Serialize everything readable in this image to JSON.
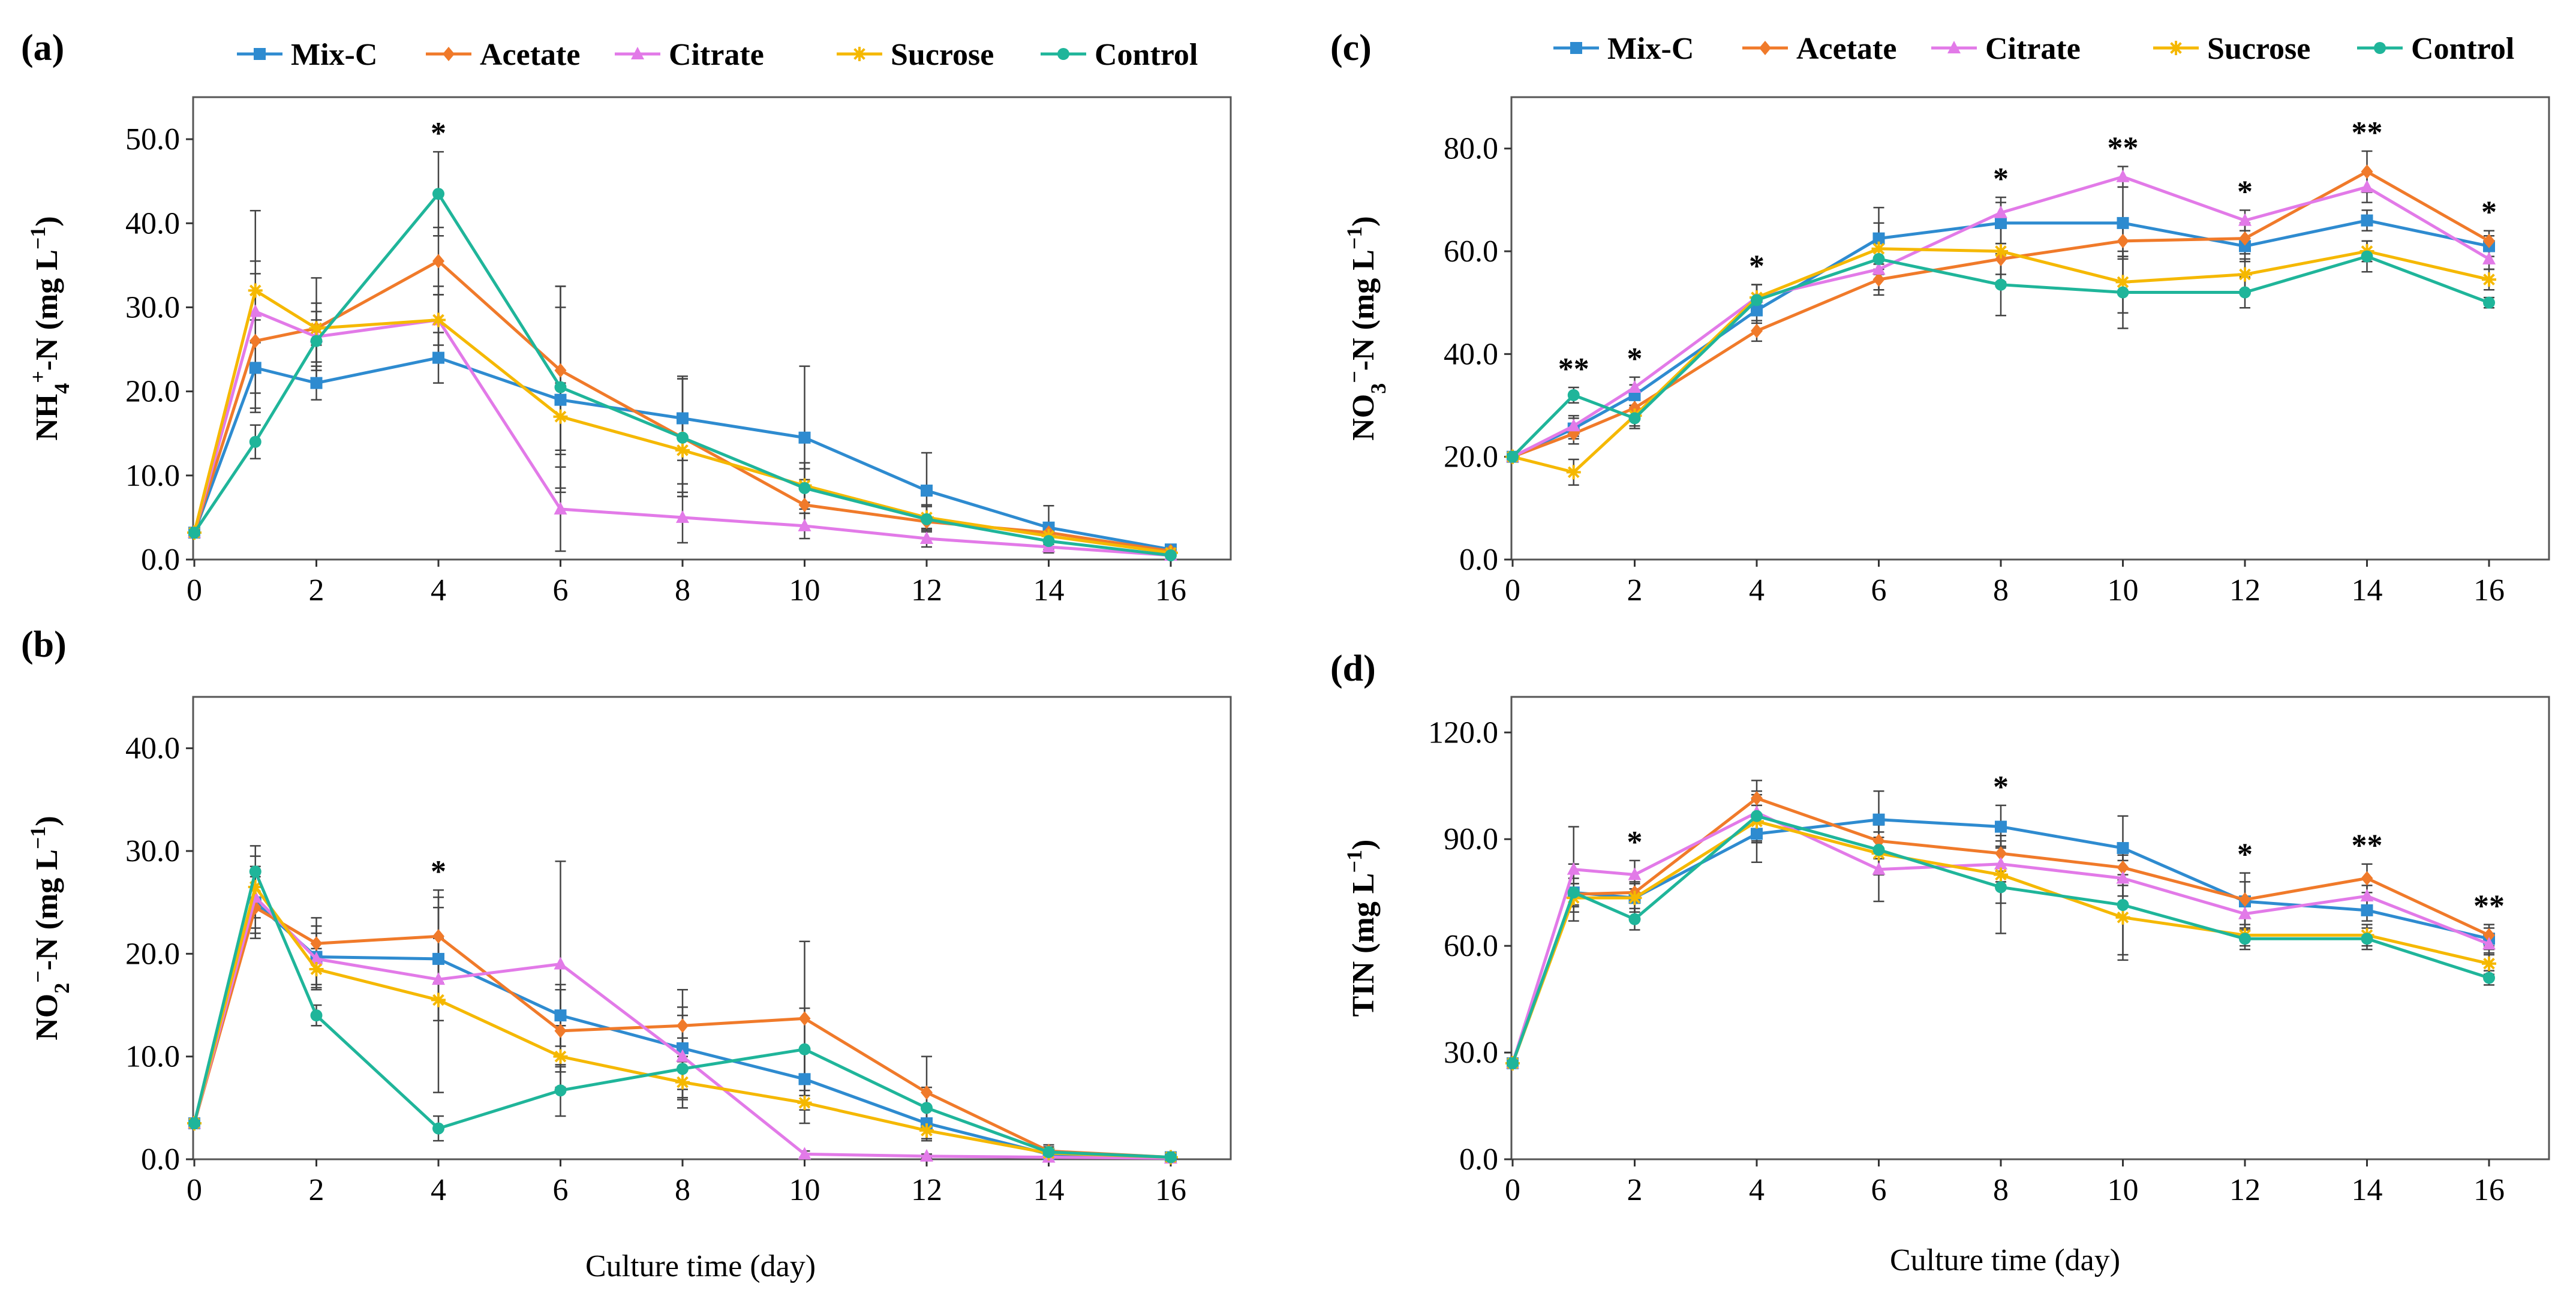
{
  "figure": {
    "xlabel": "Culture time (day)"
  },
  "legend": [
    {
      "name": "Mix-C",
      "color": "#2e8bd0",
      "marker": "square"
    },
    {
      "name": "Acetate",
      "color": "#f07a2a",
      "marker": "diamond"
    },
    {
      "name": "Citrate",
      "color": "#e27ae8",
      "marker": "triangle"
    },
    {
      "name": "Sucrose",
      "color": "#f5b800",
      "marker": "asterisk"
    },
    {
      "name": "Control",
      "color": "#1fb59a",
      "marker": "circle"
    }
  ],
  "chart_data": [
    {
      "id": "a",
      "panel_label": "(a)",
      "type": "line",
      "ylabel_parts": [
        {
          "t": "NH"
        },
        {
          "t": "4",
          "sub": true
        },
        {
          "t": "+",
          "sup": true
        },
        {
          "t": "-N (mg L"
        },
        {
          "t": "−1",
          "sup": true
        },
        {
          "t": ")"
        }
      ],
      "x": [
        0,
        1,
        2,
        4,
        6,
        8,
        10,
        12,
        14,
        16
      ],
      "xticks": [
        0,
        2,
        4,
        6,
        8,
        10,
        12,
        14,
        16
      ],
      "xlim": [
        0,
        16
      ],
      "ylim": [
        0,
        55
      ],
      "yticks": [
        0,
        10,
        20,
        30,
        40,
        50
      ],
      "yticklabels": [
        "0.0",
        "10.0",
        "20.0",
        "30.0",
        "40.0",
        "50.0"
      ],
      "series": [
        {
          "name": "Mix-C",
          "values": [
            3.2,
            22.8,
            21.0,
            24.0,
            19.0,
            16.8,
            14.5,
            8.2,
            3.8,
            1.2
          ],
          "errors": [
            0.5,
            3.0,
            2.0,
            3.0,
            11.0,
            5.0,
            8.5,
            4.5,
            2.6,
            0.4
          ]
        },
        {
          "name": "Acetate",
          "values": [
            3.2,
            26.0,
            27.5,
            35.5,
            22.5,
            14.5,
            6.5,
            4.5,
            3.2,
            1.0
          ],
          "errors": [
            0.5,
            8.0,
            6.0,
            4.0,
            10.0,
            7.0,
            3.0,
            2.0,
            1.0,
            0.5
          ]
        },
        {
          "name": "Citrate",
          "values": [
            3.2,
            29.5,
            26.5,
            28.5,
            6.0,
            5.0,
            4.0,
            2.5,
            1.5,
            0.5
          ],
          "errors": [
            0.5,
            12.0,
            4.0,
            4.0,
            5.0,
            3.0,
            1.5,
            1.0,
            0.7,
            0.3
          ]
        },
        {
          "name": "Sucrose",
          "values": [
            3.2,
            32.0,
            27.5,
            28.5,
            17.0,
            13.0,
            8.8,
            5.0,
            2.8,
            0.8
          ],
          "errors": [
            0.5,
            3.5,
            2.0,
            3.0,
            4.0,
            4.0,
            2.0,
            1.5,
            1.0,
            0.4
          ]
        },
        {
          "name": "Control",
          "values": [
            3.2,
            14.0,
            26.0,
            43.5,
            20.5,
            14.5,
            8.5,
            4.8,
            2.2,
            0.5
          ],
          "errors": [
            0.5,
            2.0,
            2.5,
            5.0,
            12.0,
            7.0,
            3.0,
            1.5,
            1.0,
            0.4
          ]
        }
      ],
      "significance": [
        {
          "x": 4,
          "label": "*"
        }
      ]
    },
    {
      "id": "b",
      "panel_label": "(b)",
      "type": "line",
      "ylabel_parts": [
        {
          "t": "NO"
        },
        {
          "t": "2",
          "sub": true
        },
        {
          "t": "−",
          "sup": true
        },
        {
          "t": "-N (mg L"
        },
        {
          "t": "−1",
          "sup": true
        },
        {
          "t": ")"
        }
      ],
      "x": [
        0,
        1,
        2,
        4,
        6,
        8,
        10,
        12,
        14,
        16
      ],
      "xticks": [
        0,
        2,
        4,
        6,
        8,
        10,
        12,
        14,
        16
      ],
      "xlim": [
        0,
        16
      ],
      "ylim": [
        0,
        45
      ],
      "yticks": [
        0,
        10,
        20,
        30,
        40
      ],
      "yticklabels": [
        "0.0",
        "10.0",
        "20.0",
        "30.0",
        "40.0"
      ],
      "series": [
        {
          "name": "Mix-C",
          "values": [
            3.5,
            25.0,
            19.7,
            19.5,
            14.0,
            10.8,
            7.8,
            3.5,
            0.5,
            0.2
          ],
          "errors": [
            0.3,
            3.0,
            3.0,
            6.0,
            3.0,
            4.0,
            3.0,
            1.5,
            0.5,
            0.2
          ]
        },
        {
          "name": "Acetate",
          "values": [
            3.5,
            24.5,
            21.0,
            21.7,
            12.5,
            13.0,
            13.7,
            6.5,
            0.8,
            0.2
          ],
          "errors": [
            0.3,
            3.0,
            2.5,
            4.5,
            4.0,
            3.5,
            7.5,
            3.5,
            0.6,
            0.2
          ]
        },
        {
          "name": "Citrate",
          "values": [
            3.5,
            25.5,
            19.5,
            17.5,
            19.0,
            10.0,
            0.5,
            0.3,
            0.2,
            0.1
          ],
          "errors": [
            0.3,
            3.0,
            2.5,
            4.0,
            10.0,
            4.0,
            0.3,
            0.2,
            0.1,
            0.1
          ]
        },
        {
          "name": "Sucrose",
          "values": [
            3.5,
            26.5,
            18.5,
            15.5,
            10.0,
            7.5,
            5.5,
            2.8,
            0.6,
            0.2
          ],
          "errors": [
            0.3,
            3.0,
            2.0,
            9.0,
            3.0,
            2.5,
            2.0,
            1.0,
            0.4,
            0.2
          ]
        },
        {
          "name": "Control",
          "values": [
            3.5,
            28.0,
            14.0,
            3.0,
            6.7,
            8.8,
            10.7,
            5.0,
            0.7,
            0.2
          ],
          "errors": [
            0.3,
            2.5,
            1.0,
            1.2,
            2.5,
            3.0,
            4.0,
            2.0,
            0.5,
            0.2
          ]
        }
      ],
      "significance": [
        {
          "x": 4,
          "label": "*"
        }
      ]
    },
    {
      "id": "c",
      "panel_label": "(c)",
      "type": "line",
      "ylabel_parts": [
        {
          "t": "NO"
        },
        {
          "t": "3",
          "sub": true
        },
        {
          "t": "−",
          "sup": true
        },
        {
          "t": "-N (mg L"
        },
        {
          "t": "−1",
          "sup": true
        },
        {
          "t": ")"
        }
      ],
      "x": [
        0,
        1,
        2,
        4,
        6,
        8,
        10,
        12,
        14,
        16
      ],
      "xticks": [
        0,
        2,
        4,
        6,
        8,
        10,
        12,
        14,
        16
      ],
      "xlim": [
        0,
        16
      ],
      "ylim": [
        0,
        90
      ],
      "yticks": [
        0,
        20,
        40,
        60,
        80
      ],
      "yticklabels": [
        "0.0",
        "20.0",
        "40.0",
        "60.0",
        "80.0"
      ],
      "series": [
        {
          "name": "Mix-C",
          "values": [
            20.0,
            25.5,
            32.0,
            48.5,
            62.5,
            65.5,
            65.5,
            61.0,
            66.0,
            61.0
          ],
          "errors": [
            0.5,
            2.0,
            2.0,
            2.5,
            6.0,
            4.0,
            7.0,
            3.0,
            2.0,
            2.0
          ]
        },
        {
          "name": "Acetate",
          "values": [
            20.0,
            24.5,
            29.5,
            44.5,
            54.5,
            58.5,
            62.0,
            62.5,
            75.5,
            62.0
          ],
          "errors": [
            0.5,
            2.0,
            2.0,
            2.0,
            3.0,
            3.0,
            3.0,
            3.0,
            4.0,
            2.0
          ]
        },
        {
          "name": "Citrate",
          "values": [
            20.0,
            26.0,
            33.5,
            51.0,
            56.5,
            67.5,
            74.5,
            66.0,
            72.5,
            58.5
          ],
          "errors": [
            0.5,
            2.0,
            2.0,
            2.5,
            4.0,
            3.0,
            2.0,
            2.0,
            3.0,
            2.0
          ]
        },
        {
          "name": "Sucrose",
          "values": [
            20.0,
            17.0,
            28.0,
            51.0,
            60.5,
            60.0,
            54.0,
            55.5,
            60.0,
            54.5
          ],
          "errors": [
            0.5,
            2.5,
            2.0,
            2.5,
            5.0,
            6.0,
            6.0,
            3.0,
            2.0,
            2.0
          ]
        },
        {
          "name": "Control",
          "values": [
            20.0,
            32.0,
            27.5,
            50.5,
            58.5,
            53.5,
            52.0,
            52.0,
            59.0,
            50.0
          ],
          "errors": [
            0.5,
            1.5,
            2.0,
            3.0,
            4.0,
            6.0,
            7.0,
            3.0,
            3.0,
            1.0
          ]
        }
      ],
      "significance": [
        {
          "x": 1,
          "label": "**"
        },
        {
          "x": 2,
          "label": "*"
        },
        {
          "x": 4,
          "label": "*"
        },
        {
          "x": 8,
          "label": "*"
        },
        {
          "x": 10,
          "label": "**"
        },
        {
          "x": 12,
          "label": "*"
        },
        {
          "x": 14,
          "label": "**"
        },
        {
          "x": 16,
          "label": "*"
        }
      ]
    },
    {
      "id": "d",
      "panel_label": "(d)",
      "type": "line",
      "ylabel_parts": [
        {
          "t": "TIN  (mg L"
        },
        {
          "t": "−1",
          "sup": true
        },
        {
          "t": ")"
        }
      ],
      "x": [
        0,
        1,
        2,
        4,
        6,
        8,
        10,
        12,
        14,
        16
      ],
      "xticks": [
        0,
        2,
        4,
        6,
        8,
        10,
        12,
        14,
        16
      ],
      "xlim": [
        0,
        16
      ],
      "ylim": [
        0,
        130
      ],
      "yticks": [
        0,
        30,
        60,
        90,
        120
      ],
      "yticklabels": [
        "0.0",
        "30.0",
        "60.0",
        "90.0",
        "120.0"
      ],
      "series": [
        {
          "name": "Mix-C",
          "values": [
            27.0,
            75.0,
            73.5,
            91.5,
            95.5,
            93.5,
            87.5,
            72.5,
            70.0,
            62.0
          ],
          "errors": [
            1.0,
            4.0,
            4.0,
            8.0,
            8.0,
            6.0,
            9.0,
            8.0,
            3.0,
            3.0
          ]
        },
        {
          "name": "Acetate",
          "values": [
            27.0,
            74.5,
            75.0,
            101.5,
            89.5,
            86.0,
            82.0,
            73.0,
            79.0,
            63.0
          ],
          "errors": [
            1.0,
            3.0,
            3.0,
            5.0,
            5.0,
            5.0,
            5.0,
            5.0,
            4.0,
            3.0
          ]
        },
        {
          "name": "Citrate",
          "values": [
            27.0,
            81.5,
            80.0,
            97.5,
            81.5,
            83.0,
            79.0,
            69.0,
            74.0,
            60.5
          ],
          "errors": [
            1.0,
            12.0,
            4.0,
            5.0,
            9.0,
            5.0,
            5.0,
            4.0,
            3.0,
            3.0
          ]
        },
        {
          "name": "Sucrose",
          "values": [
            27.0,
            73.5,
            73.5,
            95.0,
            86.0,
            80.0,
            68.0,
            63.0,
            63.0,
            55.0
          ],
          "errors": [
            1.0,
            4.0,
            4.0,
            6.0,
            6.0,
            8.0,
            12.0,
            3.0,
            3.0,
            3.0
          ]
        },
        {
          "name": "Control",
          "values": [
            27.0,
            75.0,
            67.5,
            96.5,
            87.0,
            76.5,
            71.5,
            62.0,
            62.0,
            51.0
          ],
          "errors": [
            1.0,
            8.0,
            3.0,
            7.0,
            7.0,
            13.0,
            14.0,
            3.0,
            3.0,
            2.0
          ]
        }
      ],
      "significance": [
        {
          "x": 2,
          "label": "*"
        },
        {
          "x": 8,
          "label": "*"
        },
        {
          "x": 12,
          "label": "*"
        },
        {
          "x": 14,
          "label": "**"
        },
        {
          "x": 16,
          "label": "**"
        }
      ]
    }
  ]
}
